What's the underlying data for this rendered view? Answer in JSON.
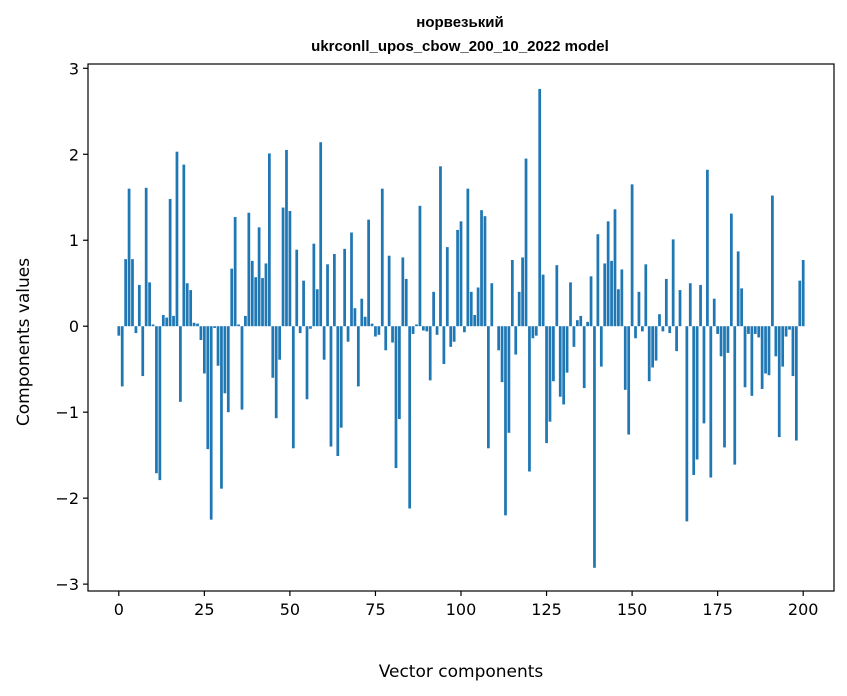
{
  "chart_data": {
    "type": "bar",
    "title": [
      "норвезький",
      "ukrconll_upos_cbow_200_10_2022 model"
    ],
    "xlabel": "Vector components",
    "ylabel": "Components values",
    "xlim": [
      -9,
      209
    ],
    "ylim": [
      -3.08,
      3.05
    ],
    "xticks": [
      0,
      25,
      50,
      75,
      100,
      125,
      150,
      175,
      200
    ],
    "yticks": [
      3,
      2,
      1,
      0,
      -1,
      -2,
      -3
    ],
    "ytick_labels": [
      "3",
      "2",
      "1",
      "0",
      "−1",
      "−2",
      "−3"
    ],
    "bar_color": "#1f77b4",
    "values": [
      -0.11,
      -0.7,
      0.78,
      1.6,
      0.78,
      -0.08,
      0.48,
      -0.58,
      1.61,
      0.51,
      0.02,
      -1.71,
      -1.79,
      0.13,
      0.1,
      1.48,
      0.12,
      2.03,
      -0.88,
      1.88,
      0.5,
      0.42,
      0.04,
      0.03,
      -0.16,
      -0.55,
      -1.43,
      -2.25,
      -0.02,
      -0.46,
      -1.89,
      -0.78,
      -1.0,
      0.67,
      1.27,
      0.02,
      -0.97,
      0.12,
      1.32,
      0.76,
      0.57,
      1.15,
      0.56,
      0.73,
      2.01,
      -0.6,
      -1.07,
      -0.39,
      1.38,
      2.05,
      1.34,
      -1.42,
      0.89,
      -0.08,
      0.53,
      -0.85,
      -0.03,
      0.96,
      0.43,
      2.14,
      -0.39,
      0.72,
      -1.4,
      0.84,
      -1.51,
      -1.18,
      0.9,
      -0.18,
      1.09,
      0.21,
      -0.7,
      0.32,
      0.11,
      1.24,
      0.03,
      -0.12,
      -0.1,
      1.6,
      -0.28,
      0.82,
      -0.19,
      -1.65,
      -1.08,
      0.8,
      0.55,
      -2.12,
      -0.09,
      0.02,
      1.4,
      -0.05,
      -0.06,
      -0.63,
      0.4,
      -0.1,
      1.86,
      -0.44,
      0.92,
      -0.24,
      -0.18,
      1.12,
      1.22,
      -0.07,
      1.6,
      0.4,
      0.13,
      0.45,
      1.35,
      1.28,
      -1.42,
      0.5,
      0.0,
      -0.28,
      -0.65,
      -2.2,
      -1.24,
      0.77,
      -0.33,
      0.4,
      0.8,
      1.95,
      -1.69,
      -0.14,
      -0.11,
      2.76,
      0.6,
      -1.36,
      -1.11,
      -0.64,
      0.71,
      -0.82,
      -0.91,
      -0.54,
      0.51,
      -0.24,
      0.07,
      0.12,
      -0.72,
      0.05,
      0.58,
      -2.81,
      1.07,
      -0.47,
      0.73,
      1.22,
      0.76,
      1.36,
      0.43,
      0.66,
      -0.74,
      -1.26,
      1.65,
      -0.14,
      0.4,
      -0.06,
      0.72,
      -0.64,
      -0.48,
      -0.4,
      0.14,
      -0.06,
      0.55,
      -0.08,
      1.01,
      -0.29,
      0.42,
      0.0,
      -2.27,
      0.5,
      -1.73,
      -1.55,
      0.48,
      -1.13,
      1.82,
      -1.76,
      0.32,
      -0.09,
      -0.35,
      -1.41,
      -0.31,
      1.31,
      -1.61,
      0.87,
      0.44,
      -0.71,
      -0.09,
      -0.81,
      -0.09,
      -0.13,
      -0.73,
      -0.55,
      -0.57,
      1.52,
      -0.35,
      -1.29,
      -0.47,
      -0.12,
      -0.04,
      -0.58,
      -1.33,
      0.53,
      0.77
    ]
  }
}
